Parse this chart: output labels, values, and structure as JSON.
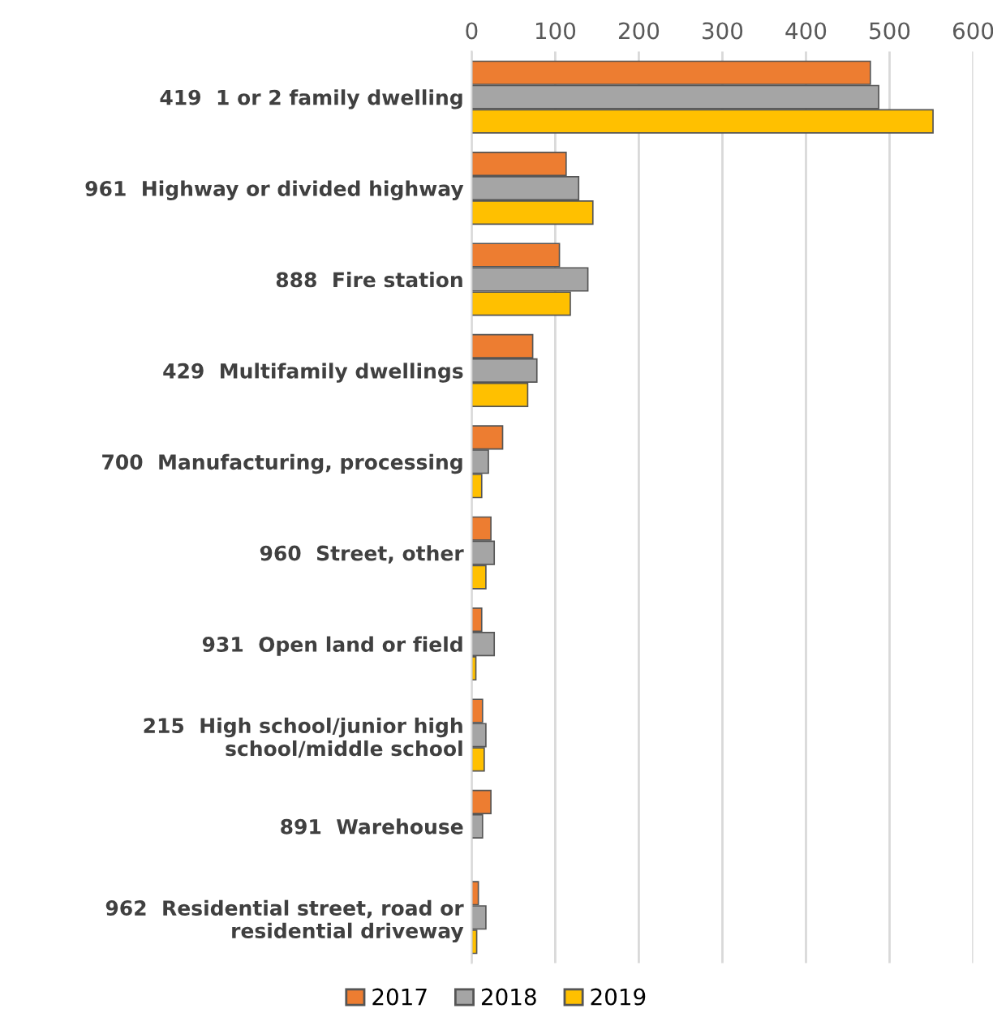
{
  "chart_data": {
    "type": "bar",
    "orientation": "horizontal",
    "categories": [
      "419  1 or 2 family dwelling",
      "961  Highway or divided highway",
      "888  Fire station",
      "429  Multifamily dwellings",
      "700  Manufacturing, processing",
      "960  Street, other",
      "931  Open land or field",
      "215  High school/junior high school/middle school",
      "891  Warehouse",
      "962  Residential street, road or residential driveway"
    ],
    "series": [
      {
        "name": "2017",
        "color": "#ed7d31",
        "values": [
          477,
          113,
          105,
          73,
          37,
          23,
          12,
          13,
          23,
          8
        ]
      },
      {
        "name": "2018",
        "color": "#a5a5a5",
        "values": [
          487,
          128,
          139,
          78,
          20,
          27,
          27,
          17,
          13,
          17
        ]
      },
      {
        "name": "2019",
        "color": "#ffc000",
        "values": [
          552,
          145,
          118,
          67,
          12,
          17,
          5,
          15,
          null,
          6
        ]
      }
    ],
    "xlim": [
      0,
      600
    ],
    "xticks": [
      0,
      100,
      200,
      300,
      400,
      500,
      600
    ],
    "grid": "x",
    "legend": "bottom"
  }
}
